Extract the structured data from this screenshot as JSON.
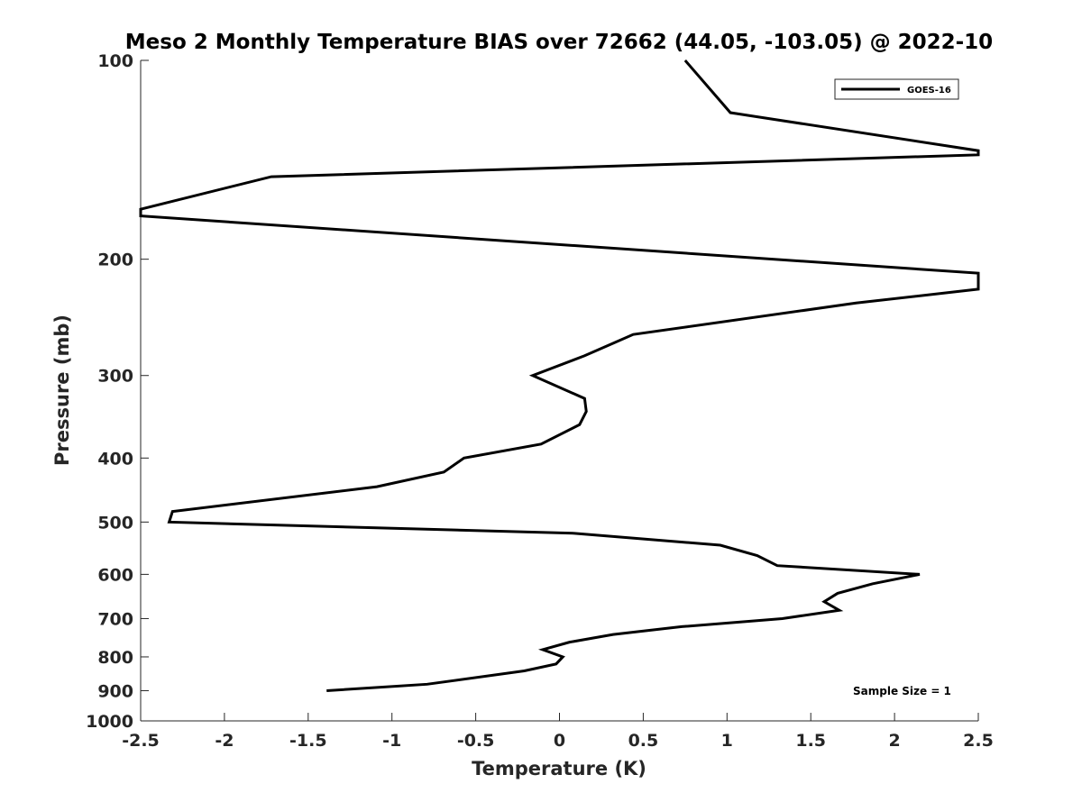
{
  "chart_data": {
    "type": "line",
    "title": "Meso 2 Monthly Temperature BIAS over 72662 (44.05, -103.05) @ 2022-10",
    "xlabel": "Temperature (K)",
    "ylabel": "Pressure (mb)",
    "xlim": [
      -2.5,
      2.5
    ],
    "ylim": [
      100,
      1000
    ],
    "y_scale": "log",
    "y_reversed": true,
    "grid": false,
    "legend_position": "top-right",
    "x_ticks": [
      -2.5,
      -2,
      -1.5,
      -1,
      -0.5,
      0,
      0.5,
      1,
      1.5,
      2,
      2.5
    ],
    "x_tick_labels": [
      "-2.5",
      "-2",
      "-1.5",
      "-1",
      "-0.5",
      "0",
      "0.5",
      "1",
      "1.5",
      "2",
      "2.5"
    ],
    "y_ticks": [
      100,
      200,
      300,
      400,
      500,
      600,
      700,
      800,
      900,
      1000
    ],
    "y_tick_labels": [
      "100",
      "200",
      "300",
      "400",
      "500",
      "600",
      "700",
      "800",
      "900",
      "1000"
    ],
    "series": [
      {
        "name": "GOES-16",
        "color": "#000000",
        "points": [
          {
            "x": 0.75,
            "y": 100
          },
          {
            "x": 1.02,
            "y": 120
          },
          {
            "x": 2.5,
            "y": 137
          },
          {
            "x": 2.5,
            "y": 139
          },
          {
            "x": -1.72,
            "y": 150
          },
          {
            "x": -2.5,
            "y": 168
          },
          {
            "x": -2.5,
            "y": 172
          },
          {
            "x": 2.5,
            "y": 210
          },
          {
            "x": 2.5,
            "y": 222
          },
          {
            "x": 1.77,
            "y": 233
          },
          {
            "x": 0.44,
            "y": 260
          },
          {
            "x": 0.15,
            "y": 280
          },
          {
            "x": -0.16,
            "y": 300
          },
          {
            "x": 0.15,
            "y": 325
          },
          {
            "x": 0.16,
            "y": 340
          },
          {
            "x": 0.12,
            "y": 356
          },
          {
            "x": -0.11,
            "y": 381
          },
          {
            "x": -0.57,
            "y": 400
          },
          {
            "x": -0.69,
            "y": 420
          },
          {
            "x": -1.09,
            "y": 442
          },
          {
            "x": -2.31,
            "y": 482
          },
          {
            "x": -2.33,
            "y": 500
          },
          {
            "x": 0.09,
            "y": 520
          },
          {
            "x": 0.96,
            "y": 542
          },
          {
            "x": 1.18,
            "y": 562
          },
          {
            "x": 1.3,
            "y": 582
          },
          {
            "x": 2.15,
            "y": 600
          },
          {
            "x": 1.87,
            "y": 620
          },
          {
            "x": 1.66,
            "y": 641
          },
          {
            "x": 1.58,
            "y": 660
          },
          {
            "x": 1.67,
            "y": 680
          },
          {
            "x": 1.33,
            "y": 700
          },
          {
            "x": 0.73,
            "y": 720
          },
          {
            "x": 0.32,
            "y": 740
          },
          {
            "x": 0.06,
            "y": 760
          },
          {
            "x": -0.1,
            "y": 780
          },
          {
            "x": 0.02,
            "y": 800
          },
          {
            "x": -0.02,
            "y": 820
          },
          {
            "x": -0.21,
            "y": 840
          },
          {
            "x": -0.79,
            "y": 880
          },
          {
            "x": -1.39,
            "y": 900
          }
        ]
      }
    ],
    "annotations": [
      "Sample Size = 1"
    ]
  }
}
